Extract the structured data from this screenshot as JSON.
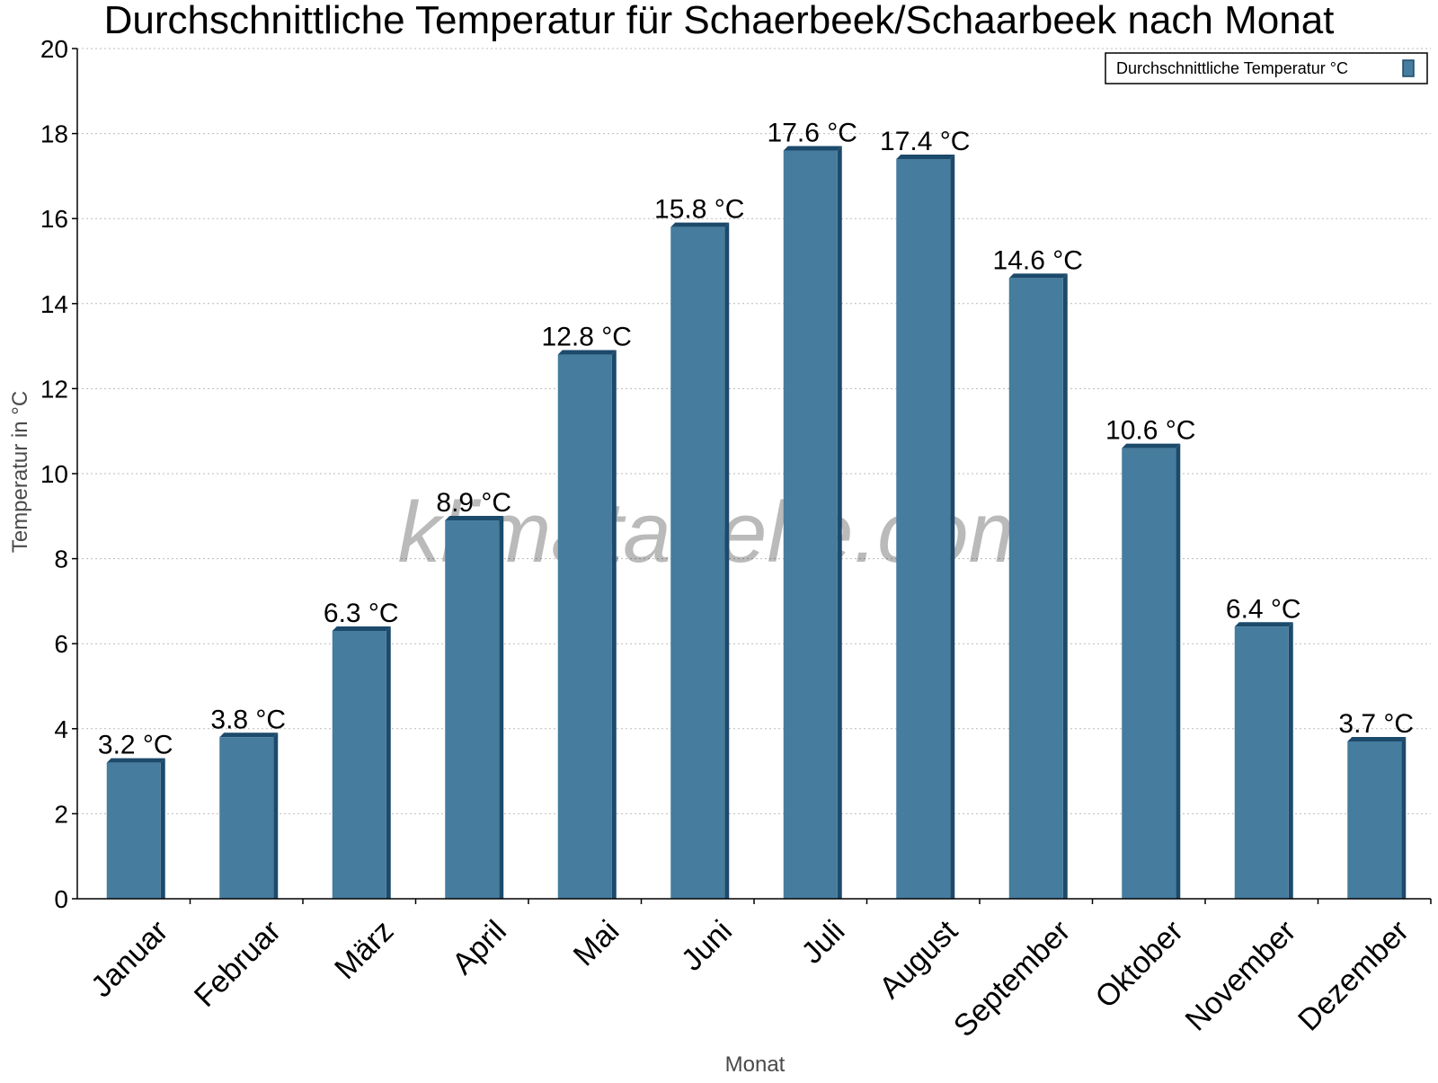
{
  "chart_data": {
    "type": "bar",
    "title": "Durchschnittliche Temperatur für Schaerbeek/Schaarbeek nach Monat",
    "xlabel": "Monat",
    "ylabel": "Temperatur in °C",
    "categories": [
      "Januar",
      "Februar",
      "März",
      "April",
      "Mai",
      "Juni",
      "Juli",
      "August",
      "September",
      "Oktober",
      "November",
      "Dezember"
    ],
    "series": [
      {
        "name": "Durchschnittliche Temperatur °C",
        "values": [
          3.2,
          3.8,
          6.3,
          8.9,
          12.8,
          15.8,
          17.6,
          17.4,
          14.6,
          10.6,
          6.4,
          3.7
        ],
        "labels": [
          "3.2 °C",
          "3.8 °C",
          "6.3 °C",
          "8.9 °C",
          "12.8 °C",
          "15.8 °C",
          "17.6 °C",
          "17.4 °C",
          "14.6 °C",
          "10.6 °C",
          "6.4 °C",
          "3.7 °C"
        ]
      }
    ],
    "ylim": [
      0,
      20
    ],
    "yticks": [
      0,
      2,
      4,
      6,
      8,
      10,
      12,
      14,
      16,
      18,
      20
    ],
    "grid": true,
    "legend_position": "top-right",
    "colors": {
      "bar": "#467c9e",
      "bar_edge": "#1c4a6b",
      "grid": "#bbbbbb",
      "axis": "#000000"
    },
    "watermark": "klimatabelle.com"
  }
}
